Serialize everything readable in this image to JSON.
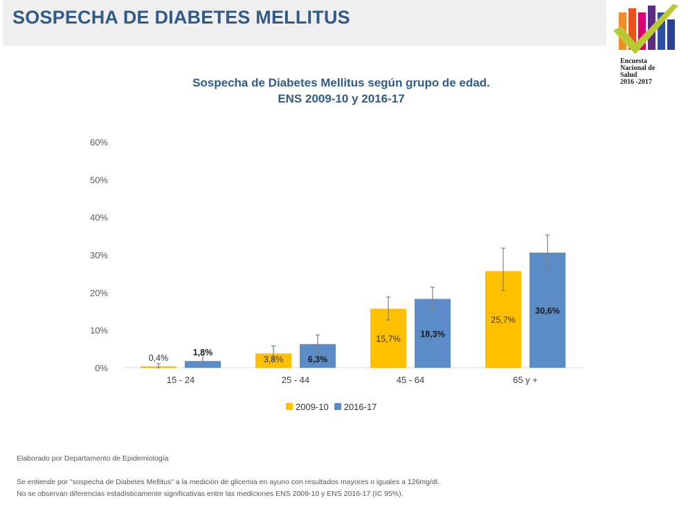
{
  "slide": {
    "title": "SOSPECHA DE DIABETES MELLITUS",
    "logo": {
      "lines": [
        "Encuesta",
        "Nacional de",
        "Salud",
        "2016 -2017"
      ]
    }
  },
  "colors": {
    "series_2009": "#ffc000",
    "series_2016": "#5b8cc8",
    "title": "#2f5b8a",
    "axis_text": "#595959"
  },
  "chart_data": {
    "type": "bar",
    "title": "Sospecha de Diabetes Mellitus según grupo de edad.",
    "subtitle": "ENS 2009-10 y 2016-17",
    "categories": [
      "15 - 24",
      "25 - 44",
      "45 - 64",
      "65 y +"
    ],
    "series": [
      {
        "name": "2009-10",
        "values": [
          0.4,
          3.8,
          15.7,
          25.7
        ],
        "labels": [
          "0,4%",
          "3,8%",
          "15,7%",
          "25,7%"
        ],
        "error_low": [
          0.0,
          2.0,
          12.7,
          20.5
        ],
        "error_high": [
          1.1,
          5.8,
          18.8,
          31.8
        ]
      },
      {
        "name": "2016-17",
        "values": [
          1.8,
          6.3,
          18.3,
          30.6
        ],
        "labels": [
          "1,8%",
          "6,3%",
          "18,3%",
          "30,6%"
        ],
        "error_low": [
          0.4,
          3.8,
          15.5,
          26.0
        ],
        "error_high": [
          3.4,
          8.7,
          21.4,
          35.3
        ]
      }
    ],
    "yticks": [
      "0%",
      "10%",
      "20%",
      "30%",
      "40%",
      "50%",
      "60%"
    ],
    "ylim": [
      0,
      60
    ],
    "grid": false,
    "legend_position": "bottom"
  },
  "footnotes": {
    "source": "Elaborado por Departamento de Epidemiología",
    "note1": "Se entiende por \"sospecha de Diabetes Mellitus\" a la medición de glicemia en ayuno con resultados mayores o iguales a 126mg/dl.",
    "note2": "No se observan diferencias estadísticamente significativas entre las mediciones ENS 2009-10 y ENS 2016-17 (IC 95%)."
  }
}
